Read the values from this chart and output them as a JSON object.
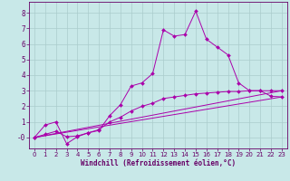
{
  "xlabel": "Windchill (Refroidissement éolien,°C)",
  "background_color": "#c8e8e8",
  "grid_color": "#aacccc",
  "line_color": "#aa00aa",
  "spine_color": "#660066",
  "xlim": [
    -0.5,
    23.5
  ],
  "ylim": [
    -0.7,
    8.7
  ],
  "xticks": [
    0,
    1,
    2,
    3,
    4,
    5,
    6,
    7,
    8,
    9,
    10,
    11,
    12,
    13,
    14,
    15,
    16,
    17,
    18,
    19,
    20,
    21,
    22,
    23
  ],
  "yticks": [
    0,
    1,
    2,
    3,
    4,
    5,
    6,
    7,
    8
  ],
  "ytick_labels": [
    "-0",
    "1",
    "2",
    "3",
    "4",
    "5",
    "6",
    "7",
    "8"
  ],
  "line1_x": [
    0,
    1,
    2,
    3,
    4,
    5,
    6,
    7,
    8,
    9,
    10,
    11,
    12,
    13,
    14,
    15,
    16,
    17,
    18,
    19,
    20,
    21,
    22,
    23
  ],
  "line1_y": [
    0.0,
    0.8,
    1.0,
    -0.4,
    0.05,
    0.3,
    0.45,
    1.4,
    2.1,
    3.3,
    3.5,
    4.1,
    6.9,
    6.5,
    6.6,
    8.1,
    6.3,
    5.8,
    5.3,
    3.5,
    3.0,
    3.0,
    2.65,
    2.6
  ],
  "line2_x": [
    0,
    1,
    2,
    3,
    4,
    5,
    6,
    7,
    8,
    9,
    10,
    11,
    12,
    13,
    14,
    15,
    16,
    17,
    18,
    19,
    20,
    21,
    22,
    23
  ],
  "line2_y": [
    0.0,
    0.2,
    0.4,
    0.05,
    0.1,
    0.3,
    0.5,
    1.0,
    1.3,
    1.7,
    2.0,
    2.2,
    2.5,
    2.6,
    2.7,
    2.8,
    2.85,
    2.9,
    2.95,
    2.95,
    3.0,
    3.0,
    3.0,
    3.0
  ],
  "line3_x": [
    0,
    23
  ],
  "line3_y": [
    0.0,
    2.6
  ],
  "line4_x": [
    0,
    23
  ],
  "line4_y": [
    0.0,
    3.0
  ]
}
